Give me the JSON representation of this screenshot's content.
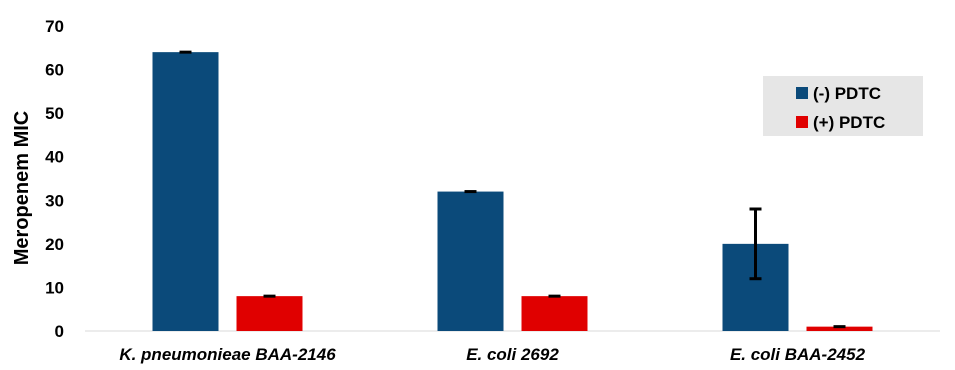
{
  "chart_data": {
    "type": "bar",
    "title": "",
    "xlabel": "",
    "ylabel": "Meropenem MIC",
    "ylim": [
      0,
      70
    ],
    "yticks": [
      0,
      10,
      20,
      30,
      40,
      50,
      60,
      70
    ],
    "grid": false,
    "legend_position": "right",
    "categories": [
      "K. pneumonieae BAA-2146",
      "E. coli 2692",
      "E. coli BAA-2452"
    ],
    "series": [
      {
        "name": "(-) PDTC",
        "color": "#0B4A7A",
        "values": [
          64,
          32,
          20
        ],
        "error": [
          0,
          0,
          8
        ]
      },
      {
        "name": "(+) PDTC",
        "color": "#E00000",
        "values": [
          8,
          8,
          1
        ],
        "error": [
          0,
          0,
          0
        ]
      }
    ]
  }
}
